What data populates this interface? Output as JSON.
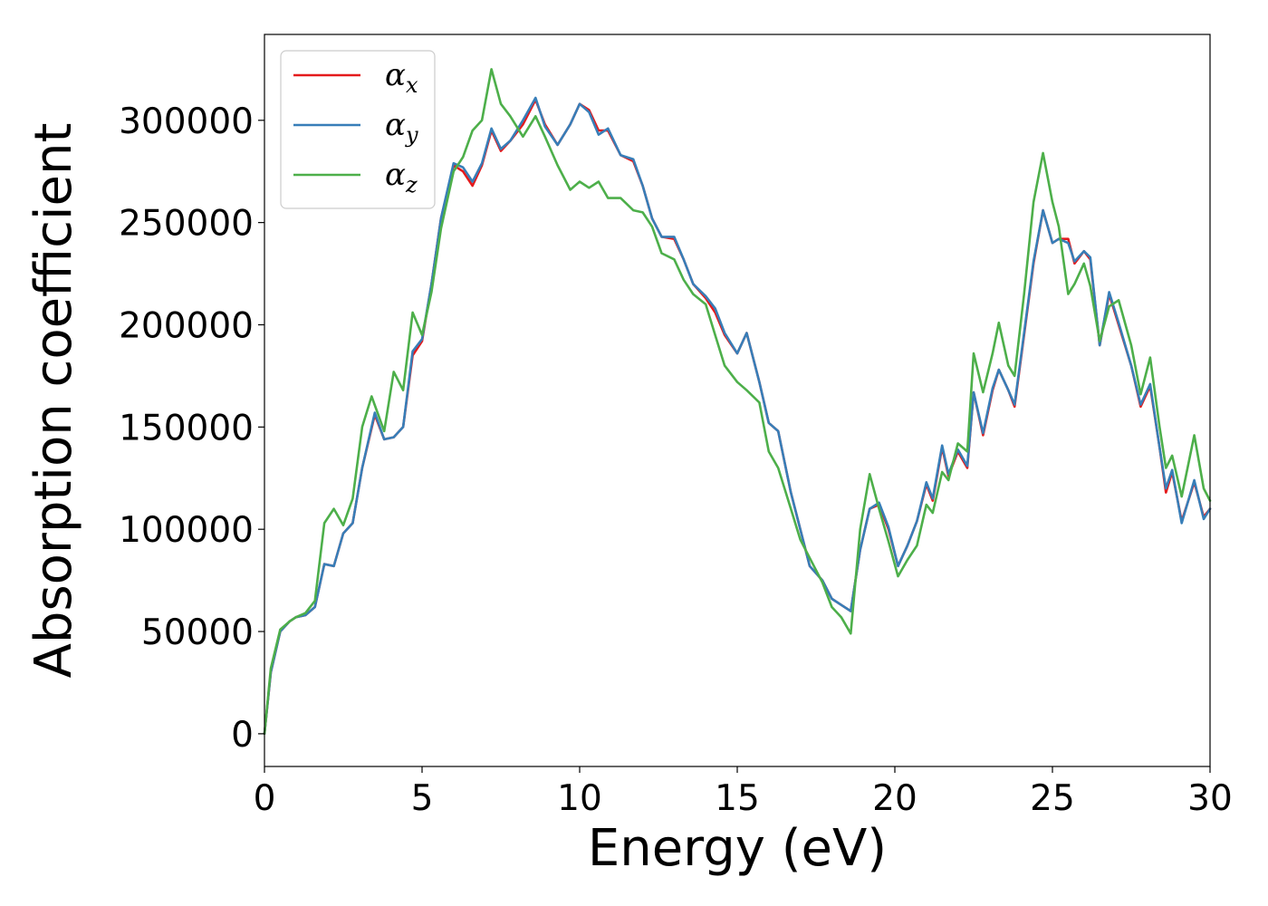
{
  "chart_data": {
    "type": "line",
    "xlabel": "Energy (eV)",
    "ylabel": "Absorption coefficient",
    "xlim": [
      0,
      30
    ],
    "ylim": [
      -16000,
      342000
    ],
    "xticks": [
      0,
      5,
      10,
      15,
      20,
      25,
      30
    ],
    "xtick_labels": [
      "0",
      "5",
      "10",
      "15",
      "20",
      "25",
      "30"
    ],
    "yticks": [
      0,
      50000,
      100000,
      150000,
      200000,
      250000,
      300000
    ],
    "ytick_labels": [
      "0",
      "50000",
      "100000",
      "150000",
      "200000",
      "250000",
      "300000"
    ],
    "grid": false,
    "legend": "top-left",
    "series": [
      {
        "name": "α",
        "subscript": "x",
        "color": "#e41a1c",
        "points": [
          [
            0,
            0
          ],
          [
            0.2,
            30000
          ],
          [
            0.5,
            50000
          ],
          [
            0.8,
            55000
          ],
          [
            1.0,
            57000
          ],
          [
            1.3,
            58000
          ],
          [
            1.6,
            62000
          ],
          [
            1.9,
            83000
          ],
          [
            2.2,
            82000
          ],
          [
            2.5,
            98000
          ],
          [
            2.8,
            103000
          ],
          [
            3.1,
            130000
          ],
          [
            3.5,
            156000
          ],
          [
            3.8,
            144000
          ],
          [
            4.1,
            145000
          ],
          [
            4.4,
            150000
          ],
          [
            4.7,
            185000
          ],
          [
            5.0,
            192000
          ],
          [
            5.3,
            220000
          ],
          [
            5.6,
            252000
          ],
          [
            6.0,
            278000
          ],
          [
            6.3,
            275000
          ],
          [
            6.6,
            268000
          ],
          [
            6.9,
            278000
          ],
          [
            7.2,
            295000
          ],
          [
            7.5,
            285000
          ],
          [
            7.8,
            290000
          ],
          [
            8.2,
            298000
          ],
          [
            8.6,
            310000
          ],
          [
            8.9,
            298000
          ],
          [
            9.3,
            288000
          ],
          [
            9.7,
            298000
          ],
          [
            10.0,
            308000
          ],
          [
            10.3,
            305000
          ],
          [
            10.6,
            295000
          ],
          [
            10.9,
            295000
          ],
          [
            11.3,
            283000
          ],
          [
            11.7,
            280000
          ],
          [
            12.0,
            268000
          ],
          [
            12.3,
            252000
          ],
          [
            12.6,
            243000
          ],
          [
            13.0,
            242000
          ],
          [
            13.3,
            232000
          ],
          [
            13.6,
            220000
          ],
          [
            14.0,
            213000
          ],
          [
            14.3,
            206000
          ],
          [
            14.6,
            195000
          ],
          [
            15.0,
            186000
          ],
          [
            15.3,
            196000
          ],
          [
            15.7,
            172000
          ],
          [
            16.0,
            152000
          ],
          [
            16.3,
            148000
          ],
          [
            16.7,
            118000
          ],
          [
            17.0,
            100000
          ],
          [
            17.3,
            82000
          ],
          [
            17.7,
            75000
          ],
          [
            18.0,
            66000
          ],
          [
            18.3,
            63000
          ],
          [
            18.6,
            60000
          ],
          [
            18.9,
            90000
          ],
          [
            19.2,
            110000
          ],
          [
            19.5,
            112000
          ],
          [
            19.8,
            100000
          ],
          [
            20.1,
            82000
          ],
          [
            20.4,
            92000
          ],
          [
            20.7,
            104000
          ],
          [
            21.0,
            122000
          ],
          [
            21.2,
            114000
          ],
          [
            21.5,
            140000
          ],
          [
            21.7,
            126000
          ],
          [
            22.0,
            138000
          ],
          [
            22.3,
            130000
          ],
          [
            22.5,
            167000
          ],
          [
            22.8,
            146000
          ],
          [
            23.1,
            168000
          ],
          [
            23.3,
            178000
          ],
          [
            23.6,
            168000
          ],
          [
            23.8,
            160000
          ],
          [
            24.1,
            195000
          ],
          [
            24.4,
            230000
          ],
          [
            24.7,
            256000
          ],
          [
            25.0,
            240000
          ],
          [
            25.2,
            242000
          ],
          [
            25.5,
            242000
          ],
          [
            25.7,
            230000
          ],
          [
            26.0,
            236000
          ],
          [
            26.2,
            232000
          ],
          [
            26.5,
            190000
          ],
          [
            26.8,
            215000
          ],
          [
            27.1,
            200000
          ],
          [
            27.5,
            180000
          ],
          [
            27.8,
            160000
          ],
          [
            28.1,
            170000
          ],
          [
            28.4,
            140000
          ],
          [
            28.6,
            118000
          ],
          [
            28.8,
            128000
          ],
          [
            29.1,
            104000
          ],
          [
            29.5,
            123000
          ],
          [
            29.8,
            106000
          ],
          [
            30.0,
            110000
          ]
        ]
      },
      {
        "name": "α",
        "subscript": "y",
        "color": "#377eb8",
        "points": [
          [
            0,
            0
          ],
          [
            0.2,
            30000
          ],
          [
            0.5,
            50000
          ],
          [
            0.8,
            55000
          ],
          [
            1.0,
            57000
          ],
          [
            1.3,
            58000
          ],
          [
            1.6,
            62000
          ],
          [
            1.9,
            83000
          ],
          [
            2.2,
            82000
          ],
          [
            2.5,
            98000
          ],
          [
            2.8,
            103000
          ],
          [
            3.1,
            130000
          ],
          [
            3.5,
            157000
          ],
          [
            3.8,
            144000
          ],
          [
            4.1,
            145000
          ],
          [
            4.4,
            150000
          ],
          [
            4.7,
            187000
          ],
          [
            5.0,
            193000
          ],
          [
            5.3,
            220000
          ],
          [
            5.6,
            252000
          ],
          [
            6.0,
            279000
          ],
          [
            6.3,
            277000
          ],
          [
            6.6,
            270000
          ],
          [
            6.9,
            279000
          ],
          [
            7.2,
            296000
          ],
          [
            7.5,
            286000
          ],
          [
            7.8,
            290000
          ],
          [
            8.2,
            300000
          ],
          [
            8.6,
            311000
          ],
          [
            8.9,
            297000
          ],
          [
            9.3,
            288000
          ],
          [
            9.7,
            298000
          ],
          [
            10.0,
            308000
          ],
          [
            10.3,
            304000
          ],
          [
            10.6,
            293000
          ],
          [
            10.9,
            296000
          ],
          [
            11.3,
            283000
          ],
          [
            11.7,
            281000
          ],
          [
            12.0,
            268000
          ],
          [
            12.3,
            252000
          ],
          [
            12.6,
            243000
          ],
          [
            13.0,
            243000
          ],
          [
            13.3,
            232000
          ],
          [
            13.6,
            220000
          ],
          [
            14.0,
            214000
          ],
          [
            14.3,
            208000
          ],
          [
            14.6,
            196000
          ],
          [
            15.0,
            186000
          ],
          [
            15.3,
            196000
          ],
          [
            15.7,
            172000
          ],
          [
            16.0,
            152000
          ],
          [
            16.3,
            148000
          ],
          [
            16.7,
            118000
          ],
          [
            17.0,
            100000
          ],
          [
            17.3,
            82000
          ],
          [
            17.7,
            75000
          ],
          [
            18.0,
            66000
          ],
          [
            18.3,
            63000
          ],
          [
            18.6,
            60000
          ],
          [
            18.9,
            90000
          ],
          [
            19.2,
            110000
          ],
          [
            19.5,
            113000
          ],
          [
            19.8,
            101000
          ],
          [
            20.1,
            82000
          ],
          [
            20.4,
            92000
          ],
          [
            20.7,
            104000
          ],
          [
            21.0,
            123000
          ],
          [
            21.2,
            115000
          ],
          [
            21.5,
            141000
          ],
          [
            21.7,
            127000
          ],
          [
            22.0,
            139000
          ],
          [
            22.3,
            131000
          ],
          [
            22.5,
            167000
          ],
          [
            22.8,
            147000
          ],
          [
            23.1,
            169000
          ],
          [
            23.3,
            178000
          ],
          [
            23.6,
            168000
          ],
          [
            23.8,
            161000
          ],
          [
            24.1,
            196000
          ],
          [
            24.4,
            231000
          ],
          [
            24.7,
            256000
          ],
          [
            25.0,
            240000
          ],
          [
            25.2,
            242000
          ],
          [
            25.5,
            240000
          ],
          [
            25.7,
            231000
          ],
          [
            26.0,
            236000
          ],
          [
            26.2,
            233000
          ],
          [
            26.5,
            190000
          ],
          [
            26.8,
            216000
          ],
          [
            27.1,
            201000
          ],
          [
            27.5,
            180000
          ],
          [
            27.8,
            161000
          ],
          [
            28.1,
            171000
          ],
          [
            28.4,
            140000
          ],
          [
            28.6,
            120000
          ],
          [
            28.8,
            129000
          ],
          [
            29.1,
            103000
          ],
          [
            29.5,
            124000
          ],
          [
            29.8,
            105000
          ],
          [
            30.0,
            110000
          ]
        ]
      },
      {
        "name": "α",
        "subscript": "z",
        "color": "#4daf4a",
        "points": [
          [
            0,
            0
          ],
          [
            0.2,
            32000
          ],
          [
            0.5,
            51000
          ],
          [
            0.8,
            55000
          ],
          [
            1.0,
            57000
          ],
          [
            1.3,
            59000
          ],
          [
            1.6,
            65000
          ],
          [
            1.9,
            103000
          ],
          [
            2.2,
            110000
          ],
          [
            2.5,
            102000
          ],
          [
            2.8,
            115000
          ],
          [
            3.1,
            150000
          ],
          [
            3.4,
            165000
          ],
          [
            3.8,
            148000
          ],
          [
            4.1,
            177000
          ],
          [
            4.4,
            168000
          ],
          [
            4.7,
            206000
          ],
          [
            5.0,
            195000
          ],
          [
            5.3,
            216000
          ],
          [
            5.6,
            247000
          ],
          [
            6.0,
            275000
          ],
          [
            6.3,
            282000
          ],
          [
            6.6,
            295000
          ],
          [
            6.9,
            300000
          ],
          [
            7.2,
            325000
          ],
          [
            7.5,
            308000
          ],
          [
            7.8,
            302000
          ],
          [
            8.2,
            292000
          ],
          [
            8.6,
            302000
          ],
          [
            8.9,
            292000
          ],
          [
            9.3,
            278000
          ],
          [
            9.7,
            266000
          ],
          [
            10.0,
            270000
          ],
          [
            10.3,
            267000
          ],
          [
            10.6,
            270000
          ],
          [
            10.9,
            262000
          ],
          [
            11.3,
            262000
          ],
          [
            11.7,
            256000
          ],
          [
            12.0,
            255000
          ],
          [
            12.3,
            248000
          ],
          [
            12.6,
            235000
          ],
          [
            13.0,
            232000
          ],
          [
            13.3,
            222000
          ],
          [
            13.6,
            215000
          ],
          [
            14.0,
            210000
          ],
          [
            14.3,
            195000
          ],
          [
            14.6,
            180000
          ],
          [
            15.0,
            172000
          ],
          [
            15.3,
            168000
          ],
          [
            15.7,
            162000
          ],
          [
            16.0,
            138000
          ],
          [
            16.3,
            130000
          ],
          [
            16.7,
            110000
          ],
          [
            17.0,
            95000
          ],
          [
            17.3,
            86000
          ],
          [
            17.7,
            74000
          ],
          [
            18.0,
            62000
          ],
          [
            18.3,
            57000
          ],
          [
            18.6,
            49000
          ],
          [
            18.9,
            100000
          ],
          [
            19.2,
            127000
          ],
          [
            19.5,
            110000
          ],
          [
            19.8,
            94000
          ],
          [
            20.1,
            77000
          ],
          [
            20.4,
            85000
          ],
          [
            20.7,
            92000
          ],
          [
            21.0,
            112000
          ],
          [
            21.2,
            108000
          ],
          [
            21.5,
            128000
          ],
          [
            21.7,
            124000
          ],
          [
            22.0,
            142000
          ],
          [
            22.3,
            138000
          ],
          [
            22.5,
            186000
          ],
          [
            22.8,
            167000
          ],
          [
            23.1,
            186000
          ],
          [
            23.3,
            201000
          ],
          [
            23.6,
            180000
          ],
          [
            23.8,
            175000
          ],
          [
            24.1,
            215000
          ],
          [
            24.4,
            260000
          ],
          [
            24.7,
            284000
          ],
          [
            25.0,
            260000
          ],
          [
            25.2,
            248000
          ],
          [
            25.5,
            215000
          ],
          [
            25.7,
            220000
          ],
          [
            26.0,
            230000
          ],
          [
            26.2,
            219000
          ],
          [
            26.5,
            192000
          ],
          [
            26.8,
            209000
          ],
          [
            27.1,
            212000
          ],
          [
            27.5,
            190000
          ],
          [
            27.8,
            166000
          ],
          [
            28.1,
            184000
          ],
          [
            28.4,
            150000
          ],
          [
            28.6,
            130000
          ],
          [
            28.8,
            136000
          ],
          [
            29.1,
            116000
          ],
          [
            29.5,
            146000
          ],
          [
            29.8,
            120000
          ],
          [
            30.0,
            114000
          ]
        ]
      }
    ]
  }
}
